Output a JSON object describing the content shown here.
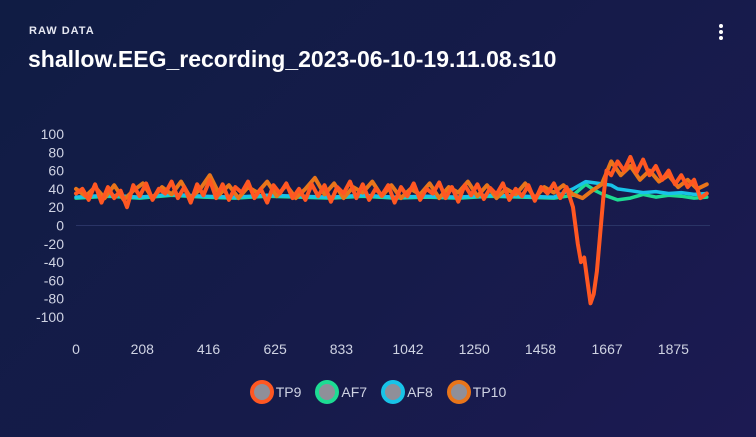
{
  "header": {
    "overline": "RAW DATA",
    "title": "shallow.EEG_recording_2023-06-10-19.11.08.s10"
  },
  "menu": {
    "icon": "more-vertical-icon"
  },
  "chart_data": {
    "type": "line",
    "xlim": [
      0,
      1990
    ],
    "ylim": [
      -100,
      100
    ],
    "x_ticks": [
      "0",
      "208",
      "416",
      "625",
      "833",
      "1042",
      "1250",
      "1458",
      "1667",
      "1875"
    ],
    "x_tick_values": [
      0,
      208,
      416,
      625,
      833,
      1042,
      1250,
      1458,
      1667,
      1875
    ],
    "y_ticks": [
      "100",
      "80",
      "60",
      "40",
      "20",
      "0",
      "-20",
      "-40",
      "-60",
      "-80",
      "-100"
    ],
    "y_tick_values": [
      100,
      80,
      60,
      40,
      20,
      0,
      -20,
      -40,
      -60,
      -80,
      -100
    ],
    "grid": false,
    "legend_position": "bottom",
    "series": [
      {
        "name": "TP9",
        "color": "#ff5722",
        "points": [
          [
            0,
            35
          ],
          [
            20,
            40
          ],
          [
            40,
            28
          ],
          [
            60,
            45
          ],
          [
            80,
            25
          ],
          [
            100,
            42
          ],
          [
            120,
            30
          ],
          [
            140,
            38
          ],
          [
            160,
            20
          ],
          [
            180,
            44
          ],
          [
            200,
            32
          ],
          [
            220,
            46
          ],
          [
            240,
            28
          ],
          [
            260,
            40
          ],
          [
            280,
            35
          ],
          [
            300,
            48
          ],
          [
            320,
            30
          ],
          [
            340,
            42
          ],
          [
            360,
            25
          ],
          [
            380,
            45
          ],
          [
            400,
            33
          ],
          [
            420,
            50
          ],
          [
            440,
            30
          ],
          [
            460,
            45
          ],
          [
            480,
            28
          ],
          [
            500,
            42
          ],
          [
            520,
            36
          ],
          [
            540,
            48
          ],
          [
            560,
            30
          ],
          [
            580,
            40
          ],
          [
            600,
            25
          ],
          [
            620,
            44
          ],
          [
            640,
            35
          ],
          [
            660,
            46
          ],
          [
            680,
            30
          ],
          [
            700,
            40
          ],
          [
            720,
            28
          ],
          [
            740,
            45
          ],
          [
            760,
            32
          ],
          [
            780,
            44
          ],
          [
            800,
            26
          ],
          [
            820,
            42
          ],
          [
            840,
            35
          ],
          [
            860,
            48
          ],
          [
            880,
            30
          ],
          [
            900,
            45
          ],
          [
            920,
            28
          ],
          [
            940,
            40
          ],
          [
            960,
            33
          ],
          [
            980,
            44
          ],
          [
            1000,
            25
          ],
          [
            1020,
            42
          ],
          [
            1040,
            32
          ],
          [
            1060,
            46
          ],
          [
            1080,
            28
          ],
          [
            1100,
            40
          ],
          [
            1120,
            35
          ],
          [
            1140,
            47
          ],
          [
            1160,
            30
          ],
          [
            1180,
            42
          ],
          [
            1200,
            26
          ],
          [
            1220,
            44
          ],
          [
            1240,
            33
          ],
          [
            1260,
            45
          ],
          [
            1280,
            29
          ],
          [
            1300,
            41
          ],
          [
            1320,
            34
          ],
          [
            1340,
            46
          ],
          [
            1360,
            28
          ],
          [
            1380,
            40
          ],
          [
            1400,
            32
          ],
          [
            1420,
            44
          ],
          [
            1440,
            27
          ],
          [
            1460,
            42
          ],
          [
            1480,
            35
          ],
          [
            1500,
            46
          ],
          [
            1520,
            30
          ],
          [
            1540,
            42
          ],
          [
            1560,
            20
          ],
          [
            1575,
            -20
          ],
          [
            1585,
            -40
          ],
          [
            1595,
            -35
          ],
          [
            1605,
            -60
          ],
          [
            1615,
            -85
          ],
          [
            1625,
            -75
          ],
          [
            1635,
            -50
          ],
          [
            1645,
            -10
          ],
          [
            1655,
            30
          ],
          [
            1665,
            60
          ],
          [
            1680,
            55
          ],
          [
            1700,
            70
          ],
          [
            1720,
            60
          ],
          [
            1740,
            75
          ],
          [
            1760,
            58
          ],
          [
            1780,
            72
          ],
          [
            1800,
            55
          ],
          [
            1820,
            65
          ],
          [
            1840,
            50
          ],
          [
            1860,
            60
          ],
          [
            1880,
            45
          ],
          [
            1900,
            55
          ],
          [
            1920,
            42
          ],
          [
            1940,
            50
          ],
          [
            1960,
            30
          ],
          [
            1980,
            35
          ]
        ]
      },
      {
        "name": "AF7",
        "color": "#1ddb93",
        "points": [
          [
            0,
            30
          ],
          [
            100,
            32
          ],
          [
            200,
            30
          ],
          [
            300,
            33
          ],
          [
            400,
            31
          ],
          [
            500,
            30
          ],
          [
            600,
            32
          ],
          [
            700,
            31
          ],
          [
            800,
            30
          ],
          [
            900,
            32
          ],
          [
            1000,
            30
          ],
          [
            1100,
            31
          ],
          [
            1200,
            30
          ],
          [
            1300,
            32
          ],
          [
            1400,
            31
          ],
          [
            1500,
            30
          ],
          [
            1560,
            33
          ],
          [
            1600,
            45
          ],
          [
            1630,
            38
          ],
          [
            1660,
            33
          ],
          [
            1700,
            28
          ],
          [
            1740,
            30
          ],
          [
            1780,
            34
          ],
          [
            1820,
            31
          ],
          [
            1860,
            33
          ],
          [
            1900,
            32
          ],
          [
            1940,
            30
          ],
          [
            1980,
            31
          ]
        ]
      },
      {
        "name": "AF8",
        "color": "#18c3e8",
        "points": [
          [
            0,
            31
          ],
          [
            100,
            33
          ],
          [
            200,
            31
          ],
          [
            300,
            34
          ],
          [
            400,
            32
          ],
          [
            500,
            31
          ],
          [
            600,
            33
          ],
          [
            700,
            32
          ],
          [
            800,
            31
          ],
          [
            900,
            33
          ],
          [
            1000,
            31
          ],
          [
            1100,
            32
          ],
          [
            1200,
            31
          ],
          [
            1300,
            33
          ],
          [
            1400,
            32
          ],
          [
            1500,
            31
          ],
          [
            1560,
            40
          ],
          [
            1600,
            48
          ],
          [
            1640,
            46
          ],
          [
            1680,
            44
          ],
          [
            1700,
            40
          ],
          [
            1740,
            38
          ],
          [
            1780,
            36
          ],
          [
            1820,
            37
          ],
          [
            1860,
            35
          ],
          [
            1900,
            36
          ],
          [
            1940,
            34
          ],
          [
            1980,
            35
          ]
        ]
      },
      {
        "name": "TP10",
        "color": "#e8751a",
        "points": [
          [
            0,
            40
          ],
          [
            30,
            32
          ],
          [
            60,
            42
          ],
          [
            90,
            30
          ],
          [
            120,
            44
          ],
          [
            150,
            28
          ],
          [
            180,
            38
          ],
          [
            210,
            46
          ],
          [
            240,
            30
          ],
          [
            270,
            42
          ],
          [
            300,
            34
          ],
          [
            330,
            48
          ],
          [
            360,
            30
          ],
          [
            390,
            40
          ],
          [
            420,
            55
          ],
          [
            450,
            34
          ],
          [
            480,
            44
          ],
          [
            510,
            30
          ],
          [
            540,
            42
          ],
          [
            570,
            36
          ],
          [
            600,
            48
          ],
          [
            630,
            32
          ],
          [
            660,
            44
          ],
          [
            690,
            30
          ],
          [
            720,
            40
          ],
          [
            750,
            52
          ],
          [
            780,
            34
          ],
          [
            810,
            46
          ],
          [
            840,
            30
          ],
          [
            870,
            42
          ],
          [
            900,
            36
          ],
          [
            930,
            48
          ],
          [
            960,
            32
          ],
          [
            990,
            44
          ],
          [
            1020,
            30
          ],
          [
            1050,
            40
          ],
          [
            1080,
            34
          ],
          [
            1110,
            46
          ],
          [
            1140,
            30
          ],
          [
            1170,
            42
          ],
          [
            1200,
            36
          ],
          [
            1230,
            48
          ],
          [
            1260,
            32
          ],
          [
            1290,
            44
          ],
          [
            1320,
            30
          ],
          [
            1350,
            40
          ],
          [
            1380,
            34
          ],
          [
            1410,
            46
          ],
          [
            1440,
            30
          ],
          [
            1470,
            42
          ],
          [
            1500,
            36
          ],
          [
            1530,
            44
          ],
          [
            1560,
            34
          ],
          [
            1590,
            30
          ],
          [
            1620,
            38
          ],
          [
            1650,
            45
          ],
          [
            1680,
            70
          ],
          [
            1710,
            55
          ],
          [
            1740,
            65
          ],
          [
            1770,
            50
          ],
          [
            1800,
            60
          ],
          [
            1830,
            48
          ],
          [
            1860,
            55
          ],
          [
            1890,
            42
          ],
          [
            1920,
            50
          ],
          [
            1950,
            40
          ],
          [
            1980,
            45
          ]
        ]
      }
    ]
  },
  "legend": {
    "items": [
      {
        "label": "TP9",
        "color": "#ff5722"
      },
      {
        "label": "AF7",
        "color": "#1ddb93"
      },
      {
        "label": "AF8",
        "color": "#18c3e8"
      },
      {
        "label": "TP10",
        "color": "#e8751a"
      }
    ]
  }
}
